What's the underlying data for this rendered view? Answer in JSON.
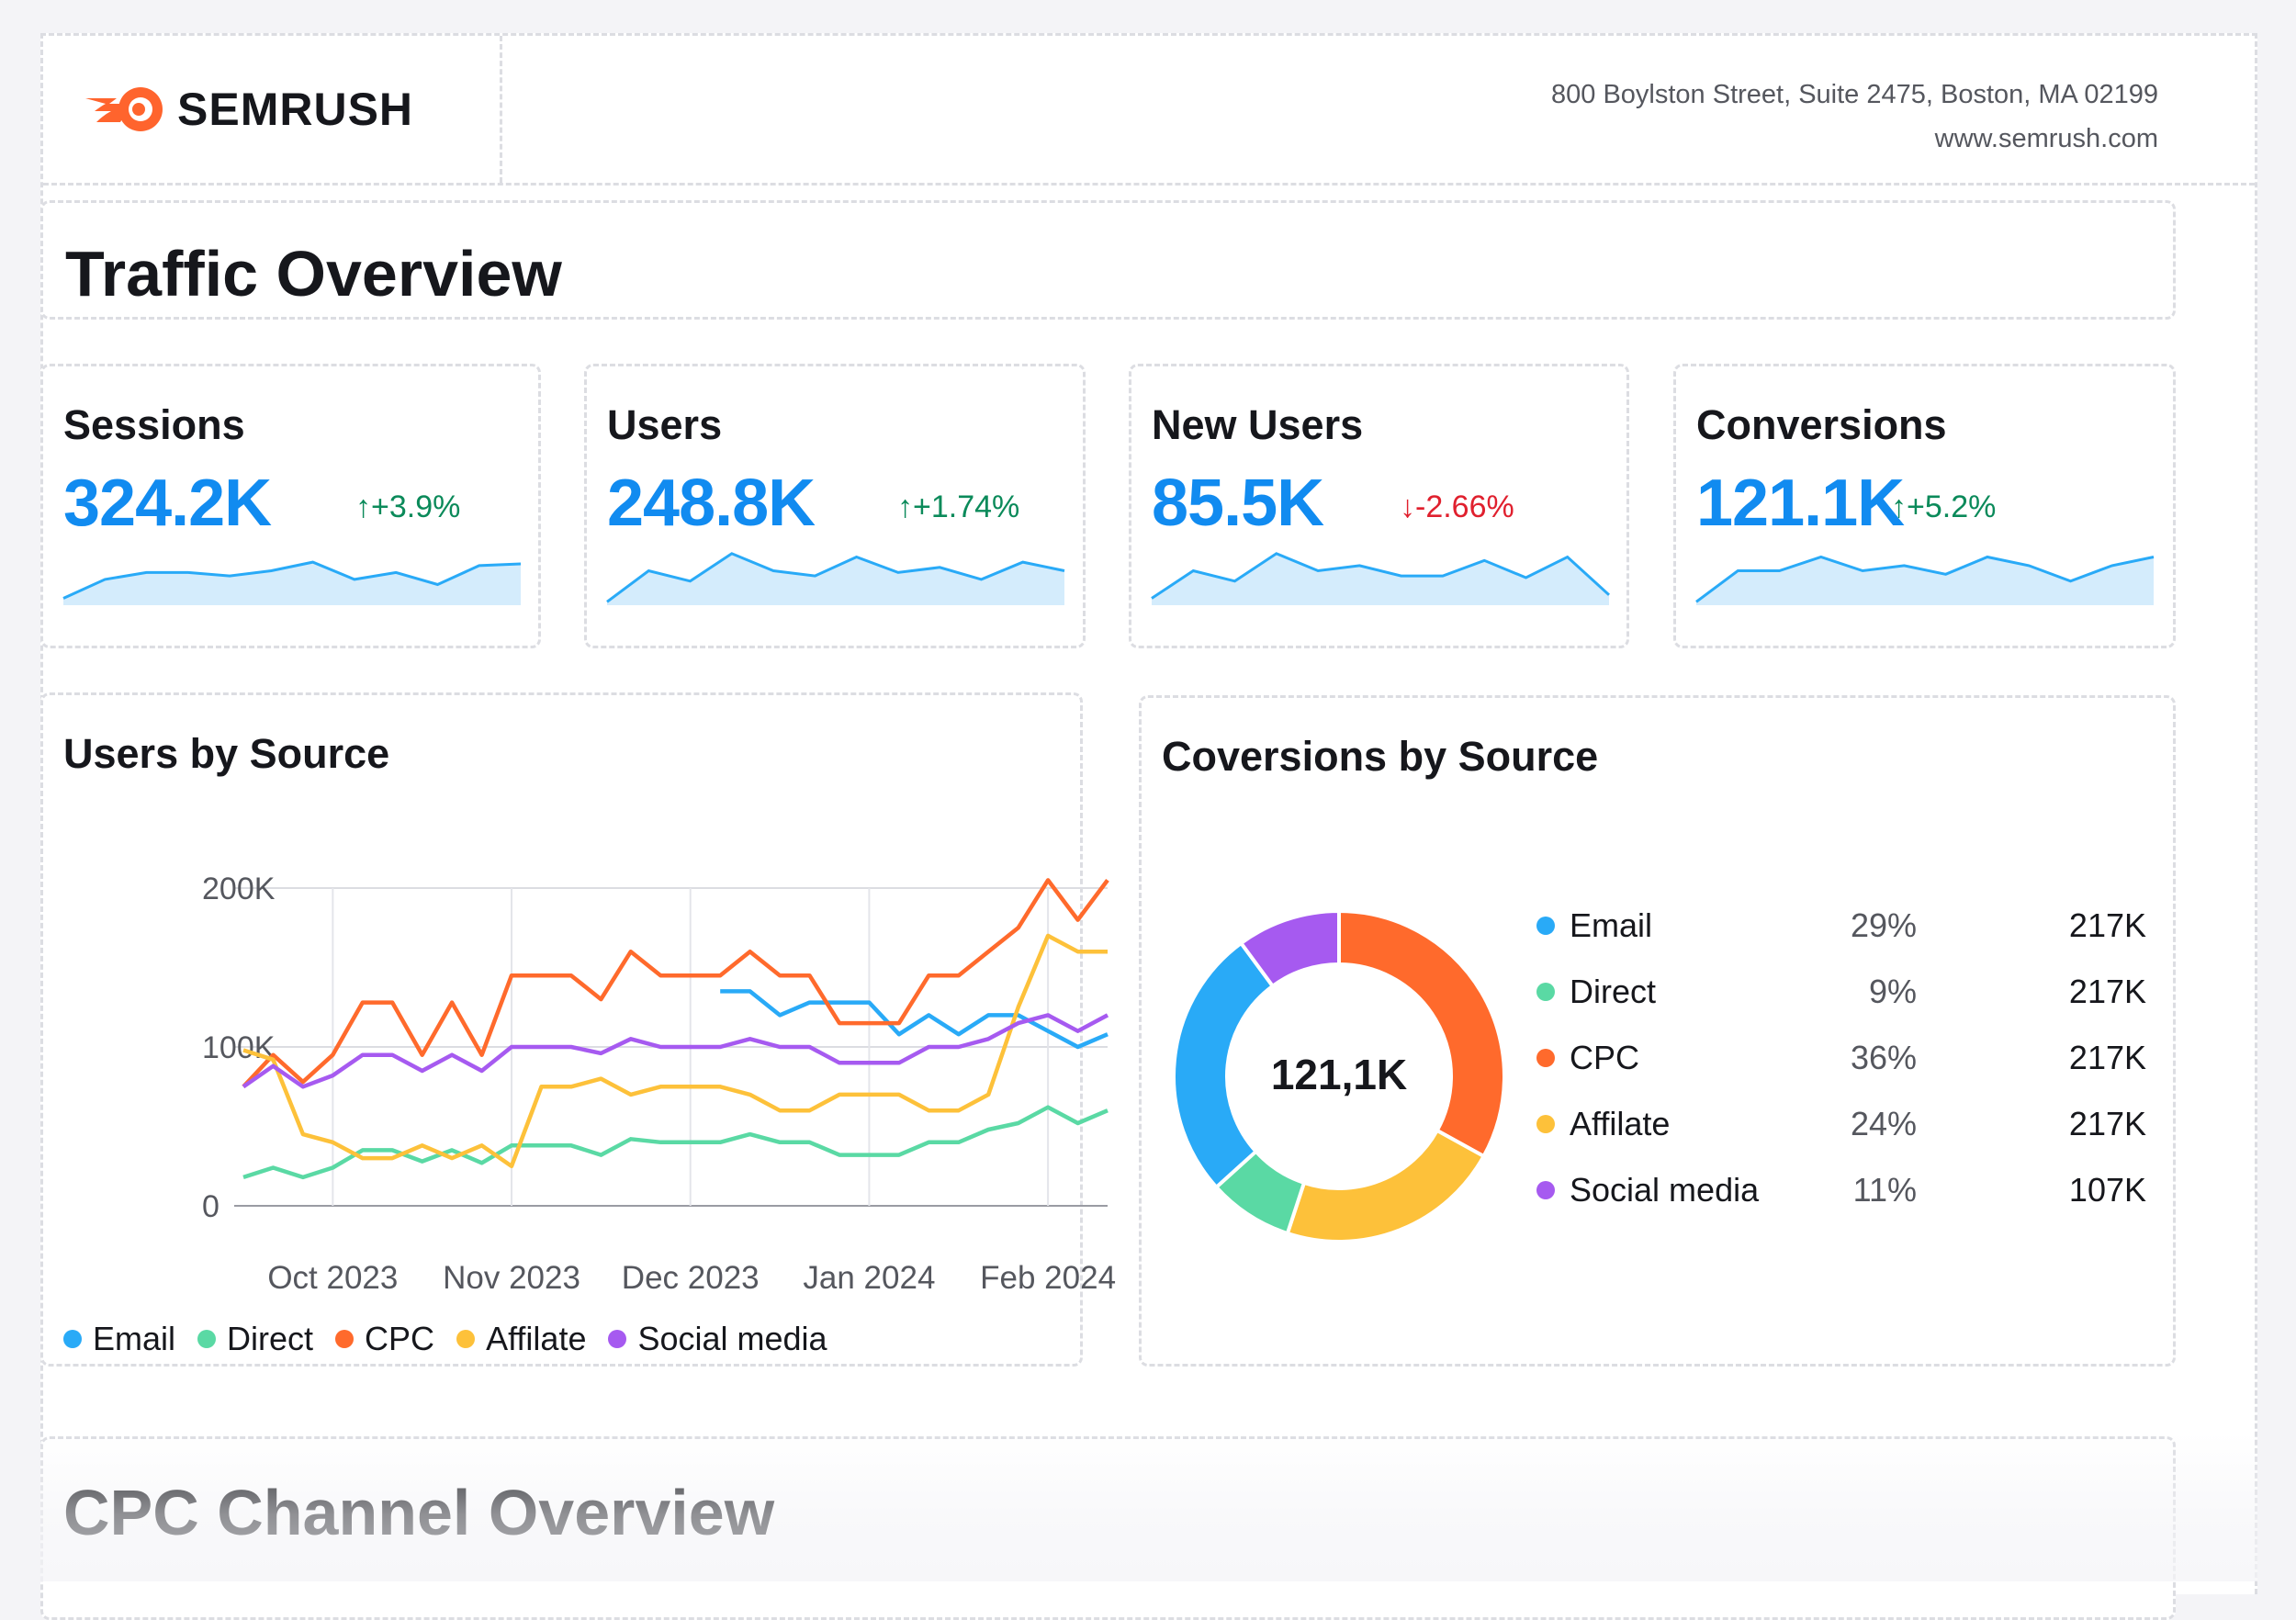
{
  "brand": {
    "name": "SEMRUSH",
    "accent": "#ff642d"
  },
  "address": {
    "line1": "800 Boylston Street, Suite 2475, Boston, MA 02199",
    "line2": "www.semrush.com"
  },
  "page_title": "Traffic Overview",
  "kpis": [
    {
      "label": "Sessions",
      "value": "324.2K",
      "delta": "↑+3.9%",
      "trend": "up",
      "spark": [
        4,
        15,
        19,
        19,
        17,
        20,
        25,
        15,
        19,
        12,
        23,
        24
      ]
    },
    {
      "label": "Users",
      "value": "248.8K",
      "delta": "↑+1.74%",
      "trend": "up",
      "spark": [
        2,
        20,
        14,
        30,
        20,
        17,
        28,
        19,
        22,
        15,
        25,
        20
      ]
    },
    {
      "label": "New Users",
      "value": "85.5K",
      "delta": "↓-2.66%",
      "trend": "down",
      "spark": [
        4,
        20,
        14,
        30,
        20,
        23,
        17,
        17,
        26,
        16,
        28,
        6
      ]
    },
    {
      "label": "Conversions",
      "value": "121.1K",
      "delta": "↑+5.2%",
      "trend": "up",
      "spark": [
        2,
        20,
        20,
        28,
        20,
        23,
        18,
        28,
        23,
        14,
        23,
        28
      ]
    }
  ],
  "users_by_source": {
    "title": "Users by Source",
    "legend": [
      "Email",
      "Direct",
      "CPC",
      "Affilate",
      "Social media"
    ]
  },
  "conversions_by_source": {
    "title": "Coversions by Source",
    "center_label": "121,1K",
    "rows": [
      {
        "name": "Email",
        "pct": "29%",
        "value": "217K",
        "color": "#29aaf7"
      },
      {
        "name": "Direct",
        "pct": "9%",
        "value": "217K",
        "color": "#5ad9a4"
      },
      {
        "name": "CPC",
        "pct": "36%",
        "value": "217K",
        "color": "#ff6a2c"
      },
      {
        "name": "Affilate",
        "pct": "24%",
        "value": "217K",
        "color": "#fdc13a"
      },
      {
        "name": "Social media",
        "pct": "11%",
        "value": "107K",
        "color": "#a65af0"
      }
    ]
  },
  "next_section_title": "CPC Channel Overview",
  "chart_data": [
    {
      "type": "line",
      "title": "Users by Source",
      "xlabel": "",
      "ylabel": "",
      "ylim": [
        0,
        200000
      ],
      "yticks": [
        "0",
        "100K",
        "200K"
      ],
      "xtick_labels": [
        "Oct 2023",
        "Nov 2023",
        "Dec 2023",
        "Jan 2024",
        "Feb 2024"
      ],
      "x": [
        0,
        1,
        2,
        3,
        4,
        5,
        6,
        7,
        8,
        9,
        10,
        11,
        12,
        13,
        14,
        15,
        16,
        17,
        18,
        19,
        20,
        21,
        22,
        23,
        24,
        25,
        26,
        27,
        28,
        29
      ],
      "series": [
        {
          "name": "Email",
          "color": "#29aaf7",
          "values": [
            null,
            null,
            null,
            null,
            null,
            null,
            null,
            null,
            null,
            null,
            null,
            null,
            null,
            null,
            null,
            null,
            135000,
            135000,
            120000,
            128000,
            128000,
            128000,
            108000,
            120000,
            108000,
            120000,
            120000,
            110000,
            100000,
            108000
          ]
        },
        {
          "name": "Direct",
          "color": "#5ad9a4",
          "values": [
            18000,
            24000,
            18000,
            24000,
            35000,
            35000,
            28000,
            35000,
            27000,
            38000,
            38000,
            38000,
            32000,
            42000,
            40000,
            40000,
            40000,
            45000,
            40000,
            40000,
            32000,
            32000,
            32000,
            40000,
            40000,
            48000,
            52000,
            62000,
            52000,
            60000
          ]
        },
        {
          "name": "CPC",
          "color": "#ff6a2c",
          "values": [
            75000,
            95000,
            78000,
            95000,
            128000,
            128000,
            95000,
            128000,
            95000,
            145000,
            145000,
            145000,
            130000,
            160000,
            145000,
            145000,
            145000,
            160000,
            145000,
            145000,
            115000,
            115000,
            115000,
            145000,
            145000,
            160000,
            175000,
            205000,
            180000,
            205000
          ]
        },
        {
          "name": "Affilate",
          "color": "#fdc13a",
          "values": [
            98000,
            92000,
            45000,
            40000,
            30000,
            30000,
            38000,
            30000,
            38000,
            25000,
            75000,
            75000,
            80000,
            70000,
            75000,
            75000,
            75000,
            70000,
            60000,
            60000,
            70000,
            70000,
            70000,
            60000,
            60000,
            70000,
            125000,
            170000,
            160000,
            160000
          ]
        },
        {
          "name": "Social media",
          "color": "#a65af0",
          "values": [
            75000,
            88000,
            75000,
            82000,
            95000,
            95000,
            85000,
            95000,
            85000,
            100000,
            100000,
            100000,
            96000,
            105000,
            100000,
            100000,
            100000,
            105000,
            100000,
            100000,
            90000,
            90000,
            90000,
            100000,
            100000,
            105000,
            115000,
            120000,
            110000,
            120000
          ]
        }
      ]
    },
    {
      "type": "pie",
      "title": "Coversions by Source",
      "categories": [
        "Email",
        "Direct",
        "CPC",
        "Affilate",
        "Social media"
      ],
      "values": [
        29,
        9,
        36,
        24,
        11
      ],
      "center_label": "121,1K"
    }
  ]
}
